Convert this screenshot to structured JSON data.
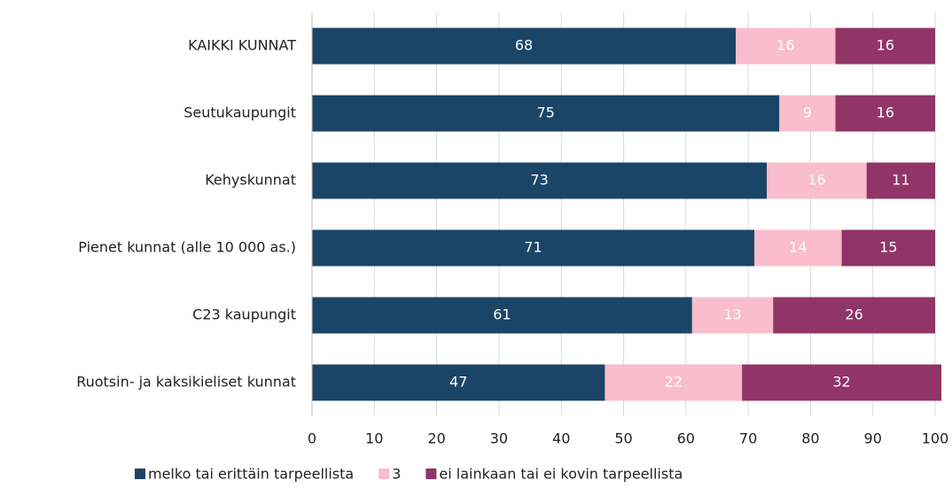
{
  "chart_data": {
    "type": "bar",
    "orientation": "horizontal",
    "stacked": true,
    "categories": [
      "KAIKKI KUNNAT",
      "Seutukaupungit",
      "Kehyskunnat",
      "Pienet kunnat (alle 10 000 as.)",
      "C23 kaupungit",
      "Ruotsin- ja kaksikieliset kunnat"
    ],
    "series": [
      {
        "name": "melko tai erittäin tarpeellista",
        "color": "#1b4566",
        "values": [
          68,
          75,
          73,
          71,
          61,
          47
        ]
      },
      {
        "name": "3",
        "color": "#f9bdcd",
        "values": [
          16,
          9,
          16,
          14,
          13,
          22
        ]
      },
      {
        "name": "ei lainkaan tai ei kovin tarpeellista",
        "color": "#913468",
        "values": [
          16,
          16,
          11,
          15,
          26,
          32
        ]
      }
    ],
    "xlim": [
      0,
      100
    ],
    "xticks": [
      0,
      10,
      20,
      30,
      40,
      50,
      60,
      70,
      80,
      90,
      100
    ],
    "grid": true,
    "legend": "bottom"
  }
}
